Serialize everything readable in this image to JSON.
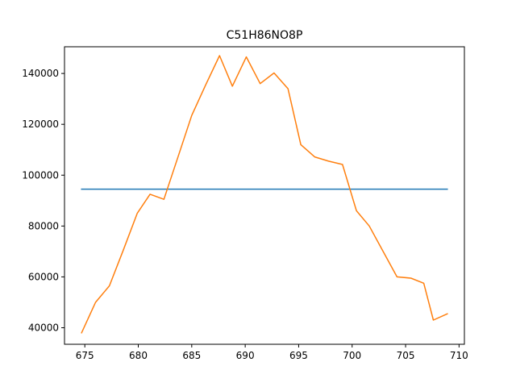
{
  "chart_data": {
    "type": "line",
    "title": "C51H86NO8P",
    "xlabel": "",
    "ylabel": "",
    "xlim": [
      673.1,
      710.5
    ],
    "ylim": [
      33500,
      150500
    ],
    "grid": false,
    "xticks": [
      675,
      680,
      685,
      690,
      695,
      700,
      705,
      710
    ],
    "yticks": [
      40000,
      60000,
      80000,
      100000,
      120000,
      140000
    ],
    "series": [
      {
        "color": "#1f77b4",
        "x": [
          674.7,
          708.9
        ],
        "y": [
          94500,
          94500
        ]
      },
      {
        "color": "#ff7f0e",
        "x": [
          674.7,
          676.0,
          677.3,
          678.6,
          679.9,
          681.1,
          682.4,
          683.7,
          685.0,
          686.3,
          687.6,
          688.8,
          690.1,
          691.4,
          692.7,
          694.0,
          695.2,
          696.5,
          697.8,
          699.1,
          700.4,
          701.6,
          702.9,
          704.2,
          705.5,
          706.7,
          707.6,
          708.9
        ],
        "y": [
          38000,
          50000,
          56500,
          70500,
          85000,
          92500,
          90500,
          107000,
          123500,
          135500,
          147000,
          135000,
          146500,
          136000,
          140200,
          134000,
          112000,
          107200,
          105500,
          104200,
          86000,
          80000,
          70000,
          60000,
          59500,
          57500,
          43000,
          45500
        ]
      }
    ]
  }
}
